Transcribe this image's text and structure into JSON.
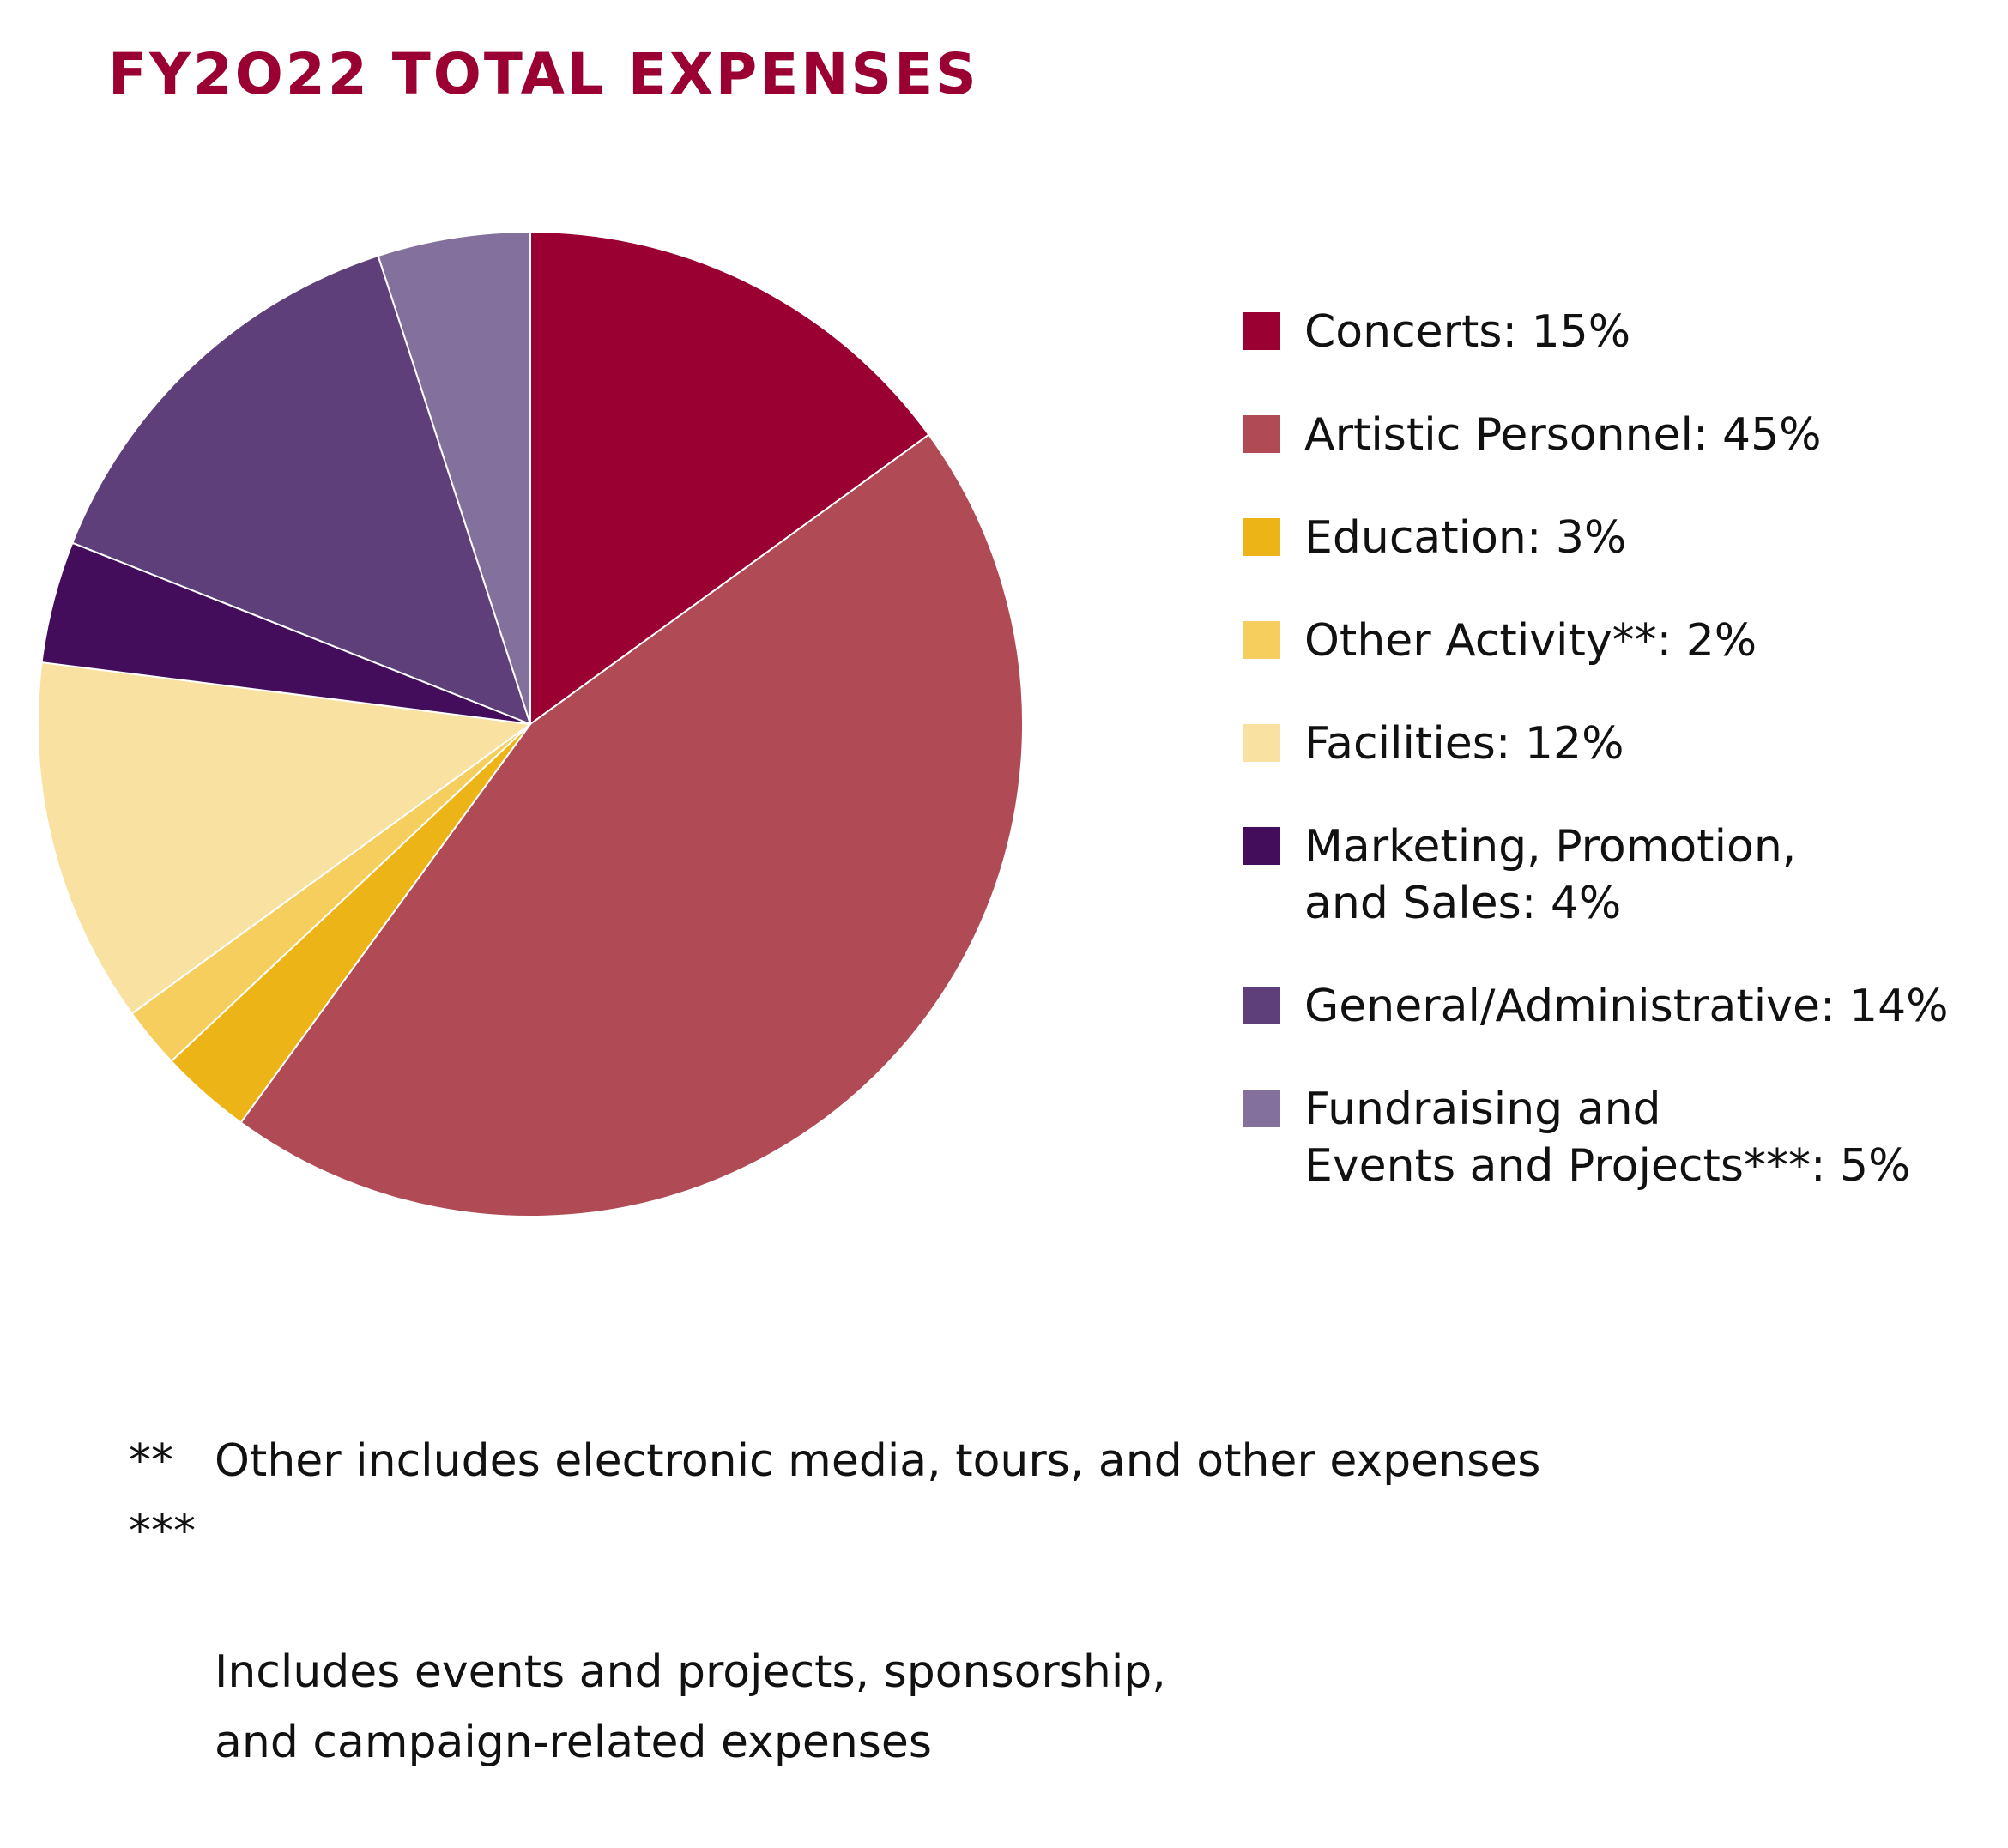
{
  "title": "FY2O22  TOTAL EXPENSES",
  "chart_data": {
    "type": "pie",
    "title": "FY2O22  TOTAL EXPENSES",
    "start": "top",
    "direction": "clockwise",
    "slices": [
      {
        "label": "Concerts",
        "value": 15,
        "color": "#9a0032",
        "legend_text": "Concerts: 15%"
      },
      {
        "label": "Artistic Personnel",
        "value": 45,
        "color": "#b04a55",
        "legend_text": "Artistic Personnel: 45%"
      },
      {
        "label": "Education",
        "value": 3,
        "color": "#edb418",
        "legend_text": "Education: 3%"
      },
      {
        "label": "Other Activity**",
        "value": 2,
        "color": "#f6ce5e",
        "legend_text": "Other Activity**: 2%"
      },
      {
        "label": "Facilities",
        "value": 12,
        "color": "#f9e1a2",
        "legend_text": "Facilities: 12%"
      },
      {
        "label": "Marketing, Promotion, and Sales",
        "value": 4,
        "color": "#430d5b",
        "legend_text": "Marketing, Promotion,\nand Sales: 4%"
      },
      {
        "label": "General/Administrative",
        "value": 14,
        "color": "#5e3f7a",
        "legend_text": "General/Administrative: 14%"
      },
      {
        "label": "Fundraising and Events and Projects***",
        "value": 5,
        "color": "#84709c",
        "legend_text": "Fundraising and\nEvents and Projects***: 5%"
      }
    ],
    "legend_position": "right"
  },
  "notes": [
    {
      "mark": "**",
      "text": "Other includes electronic media, tours, and other expenses"
    },
    {
      "mark": "***",
      "text": "Includes events and projects, sponsorship,\nand campaign-related expenses"
    }
  ]
}
